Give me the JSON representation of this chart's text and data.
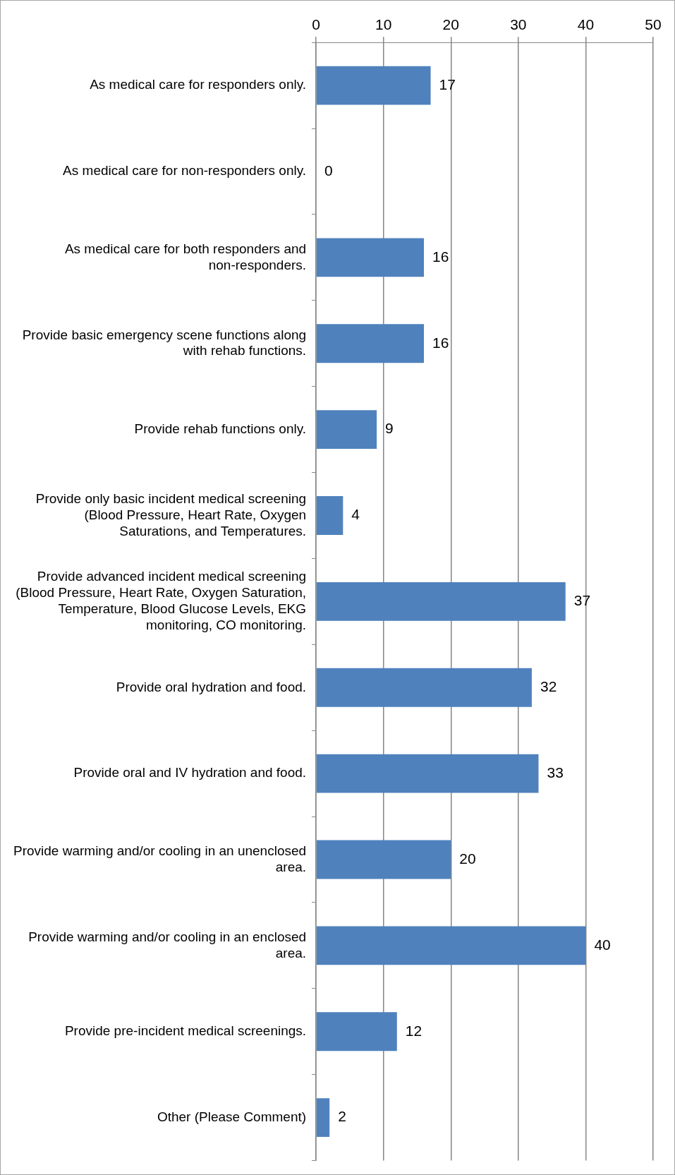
{
  "chart_data": {
    "type": "bar",
    "orientation": "horizontal",
    "categories": [
      "As medical care for responders only.",
      "As medical care for non-responders only.",
      "As medical care for both responders and non-responders.",
      "Provide basic emergency scene functions along with rehab functions.",
      "Provide rehab functions only.",
      "Provide only basic incident medical screening (Blood Pressure, Heart Rate, Oxygen Saturations, and Temperatures.",
      "Provide advanced incident medical screening (Blood Pressure, Heart Rate, Oxygen Saturation, Temperature, Blood Glucose Levels, EKG monitoring, CO monitoring.",
      "Provide oral hydration and food.",
      "Provide oral and IV hydration and food.",
      "Provide warming and/or cooling in an unenclosed area.",
      "Provide warming and/or cooling in an enclosed area.",
      "Provide pre-incident medical screenings.",
      "Other (Please Comment)"
    ],
    "values": [
      17,
      0,
      16,
      16,
      9,
      4,
      37,
      32,
      33,
      20,
      40,
      12,
      2
    ],
    "color": "#4f81bd",
    "xlim": [
      0,
      50
    ],
    "xticks": [
      0,
      10,
      20,
      30,
      40,
      50
    ],
    "grid": "x",
    "data_labels": true
  }
}
